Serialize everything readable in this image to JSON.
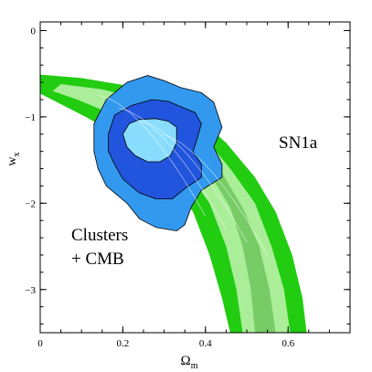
{
  "chart_data": {
    "type": "contour",
    "xlabel": "Ω",
    "xlabel_sub": "m",
    "ylabel": "w",
    "ylabel_sub": "x",
    "xlim": [
      0,
      0.75
    ],
    "ylim": [
      -3.5,
      0.1
    ],
    "xticks": [
      0,
      0.2,
      0.4,
      0.6
    ],
    "xtick_labels": [
      "0",
      "0.2",
      "0.4",
      "0.6"
    ],
    "yticks": [
      0,
      -1,
      -2,
      -3
    ],
    "ytick_labels": [
      "0",
      "−1",
      "−2",
      "−3"
    ],
    "annotations": {
      "sn1a": "SN1a",
      "clusters_line1": "Clusters",
      "clusters_line2": "+ CMB"
    },
    "colors": {
      "sn_outer": "#22cc11",
      "sn_middle": "#aaee99",
      "sn_inner": "#77cc66",
      "cl_outer": "#3399ee",
      "cl_inner": "#2255dd",
      "cl_core": "#88ddff"
    },
    "regions": [
      {
        "name": "sn1a-band-outer",
        "fill": "sn_outer",
        "points": [
          [
            0,
            -0.51
          ],
          [
            0.1,
            -0.55
          ],
          [
            0.2,
            -0.63
          ],
          [
            0.3,
            -0.78
          ],
          [
            0.38,
            -1.0
          ],
          [
            0.45,
            -1.3
          ],
          [
            0.52,
            -1.7
          ],
          [
            0.57,
            -2.1
          ],
          [
            0.61,
            -2.6
          ],
          [
            0.635,
            -3.1
          ],
          [
            0.645,
            -3.5
          ],
          [
            0.46,
            -3.5
          ],
          [
            0.44,
            -3.1
          ],
          [
            0.41,
            -2.6
          ],
          [
            0.37,
            -2.1
          ],
          [
            0.31,
            -1.7
          ],
          [
            0.22,
            -1.3
          ],
          [
            0.11,
            -1.0
          ],
          [
            0,
            -0.73
          ]
        ]
      },
      {
        "name": "sn1a-band-middle",
        "fill": "sn_middle",
        "points": [
          [
            0.05,
            -0.62
          ],
          [
            0.15,
            -0.68
          ],
          [
            0.25,
            -0.8
          ],
          [
            0.33,
            -0.98
          ],
          [
            0.4,
            -1.25
          ],
          [
            0.46,
            -1.6
          ],
          [
            0.52,
            -2.0
          ],
          [
            0.56,
            -2.5
          ],
          [
            0.59,
            -3.0
          ],
          [
            0.605,
            -3.5
          ],
          [
            0.49,
            -3.5
          ],
          [
            0.475,
            -3.0
          ],
          [
            0.45,
            -2.5
          ],
          [
            0.41,
            -2.0
          ],
          [
            0.35,
            -1.6
          ],
          [
            0.27,
            -1.25
          ],
          [
            0.18,
            -0.98
          ],
          [
            0.09,
            -0.8
          ],
          [
            0.03,
            -0.7
          ]
        ]
      },
      {
        "name": "sn1a-band-inner",
        "fill": "sn_inner",
        "points": [
          [
            0.25,
            -0.92
          ],
          [
            0.32,
            -1.07
          ],
          [
            0.38,
            -1.3
          ],
          [
            0.44,
            -1.65
          ],
          [
            0.49,
            -2.05
          ],
          [
            0.53,
            -2.5
          ],
          [
            0.555,
            -3.0
          ],
          [
            0.57,
            -3.5
          ],
          [
            0.52,
            -3.5
          ],
          [
            0.51,
            -3.0
          ],
          [
            0.49,
            -2.5
          ],
          [
            0.46,
            -2.05
          ],
          [
            0.41,
            -1.65
          ],
          [
            0.35,
            -1.3
          ],
          [
            0.29,
            -1.07
          ],
          [
            0.22,
            -0.95
          ]
        ]
      },
      {
        "name": "clusters-cmb-outer",
        "fill": "cl_outer",
        "points": [
          [
            0.13,
            -1.08
          ],
          [
            0.16,
            -0.8
          ],
          [
            0.21,
            -0.6
          ],
          [
            0.26,
            -0.52
          ],
          [
            0.3,
            -0.58
          ],
          [
            0.34,
            -0.66
          ],
          [
            0.39,
            -0.72
          ],
          [
            0.42,
            -0.83
          ],
          [
            0.44,
            -1.12
          ],
          [
            0.42,
            -1.35
          ],
          [
            0.44,
            -1.55
          ],
          [
            0.44,
            -1.7
          ],
          [
            0.39,
            -1.85
          ],
          [
            0.365,
            -2.05
          ],
          [
            0.35,
            -2.25
          ],
          [
            0.33,
            -2.32
          ],
          [
            0.28,
            -2.28
          ],
          [
            0.24,
            -2.18
          ],
          [
            0.21,
            -2.0
          ],
          [
            0.16,
            -1.8
          ],
          [
            0.14,
            -1.6
          ],
          [
            0.13,
            -1.4
          ]
        ]
      },
      {
        "name": "clusters-cmb-inner",
        "fill": "cl_inner",
        "points": [
          [
            0.165,
            -1.2
          ],
          [
            0.18,
            -0.98
          ],
          [
            0.22,
            -0.87
          ],
          [
            0.27,
            -0.8
          ],
          [
            0.31,
            -0.82
          ],
          [
            0.34,
            -0.88
          ],
          [
            0.375,
            -0.95
          ],
          [
            0.39,
            -1.08
          ],
          [
            0.38,
            -1.25
          ],
          [
            0.37,
            -1.4
          ],
          [
            0.39,
            -1.55
          ],
          [
            0.39,
            -1.7
          ],
          [
            0.35,
            -1.83
          ],
          [
            0.32,
            -1.95
          ],
          [
            0.28,
            -1.95
          ],
          [
            0.24,
            -1.88
          ],
          [
            0.2,
            -1.72
          ],
          [
            0.18,
            -1.55
          ],
          [
            0.165,
            -1.4
          ]
        ]
      },
      {
        "name": "clusters-cmb-core",
        "fill": "cl_core",
        "points": [
          [
            0.2,
            -1.2
          ],
          [
            0.215,
            -1.08
          ],
          [
            0.24,
            -1.03
          ],
          [
            0.28,
            -1.02
          ],
          [
            0.31,
            -1.05
          ],
          [
            0.33,
            -1.12
          ],
          [
            0.33,
            -1.3
          ],
          [
            0.315,
            -1.45
          ],
          [
            0.29,
            -1.52
          ],
          [
            0.26,
            -1.52
          ],
          [
            0.23,
            -1.45
          ],
          [
            0.21,
            -1.35
          ]
        ]
      }
    ]
  }
}
